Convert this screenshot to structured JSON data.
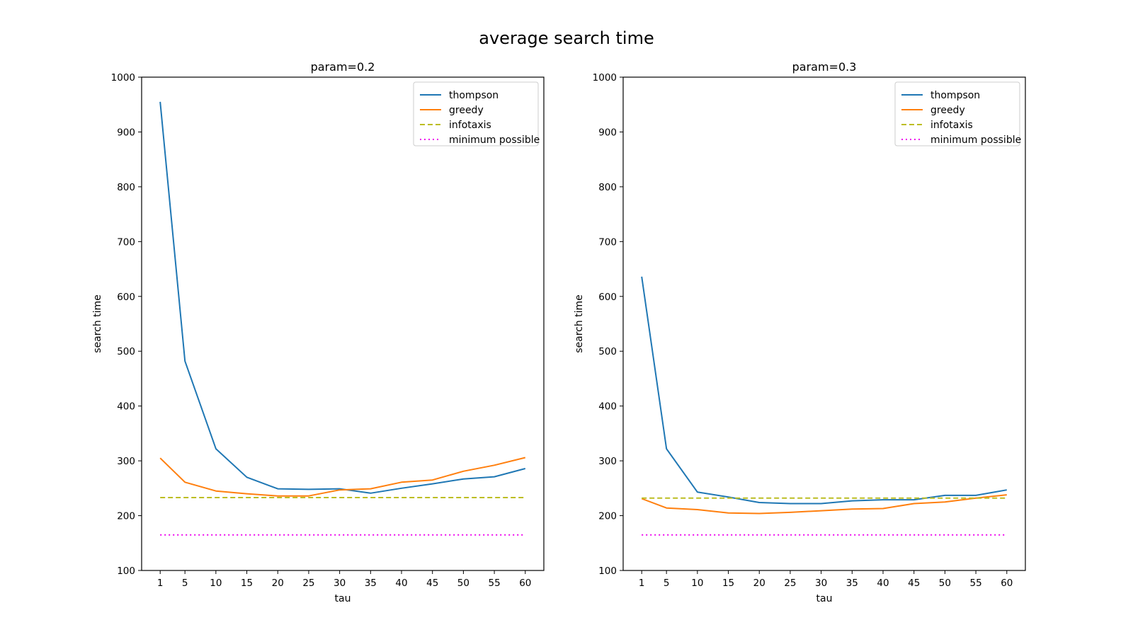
{
  "figure": {
    "title": "average search time"
  },
  "chart_data": [
    {
      "type": "line",
      "title": "param=0.2",
      "xlabel": "tau",
      "ylabel": "search time",
      "ylim": [
        100,
        1000
      ],
      "yticks": [
        100,
        200,
        300,
        400,
        500,
        600,
        700,
        800,
        900,
        1000
      ],
      "xticks": [
        1,
        5,
        10,
        15,
        20,
        25,
        30,
        35,
        40,
        45,
        50,
        55,
        60
      ],
      "x": [
        1,
        5,
        10,
        15,
        20,
        25,
        30,
        35,
        40,
        45,
        50,
        55,
        60
      ],
      "grid": false,
      "legend_position": "upper right",
      "series": [
        {
          "name": "thompson",
          "style": "solid",
          "color": "#1f77b4",
          "values": [
            955,
            482,
            322,
            270,
            249,
            248,
            249,
            241,
            250,
            258,
            267,
            271,
            286
          ]
        },
        {
          "name": "greedy",
          "style": "solid",
          "color": "#ff7f0e",
          "values": [
            305,
            261,
            245,
            240,
            236,
            236,
            247,
            249,
            261,
            265,
            281,
            292,
            306
          ]
        },
        {
          "name": "infotaxis",
          "style": "dashed",
          "color": "#bcbd22",
          "values": [
            233,
            233,
            233,
            233,
            233,
            233,
            233,
            233,
            233,
            233,
            233,
            233,
            233
          ]
        },
        {
          "name": "minimum possible",
          "style": "dotted",
          "color": "#ee00ee",
          "values": [
            165,
            165,
            165,
            165,
            165,
            165,
            165,
            165,
            165,
            165,
            165,
            165,
            165
          ]
        }
      ]
    },
    {
      "type": "line",
      "title": "param=0.3",
      "xlabel": "tau",
      "ylabel": "search time",
      "ylim": [
        100,
        1000
      ],
      "yticks": [
        100,
        200,
        300,
        400,
        500,
        600,
        700,
        800,
        900,
        1000
      ],
      "xticks": [
        1,
        5,
        10,
        15,
        20,
        25,
        30,
        35,
        40,
        45,
        50,
        55,
        60
      ],
      "x": [
        1,
        5,
        10,
        15,
        20,
        25,
        30,
        35,
        40,
        45,
        50,
        55,
        60
      ],
      "grid": false,
      "legend_position": "upper right",
      "series": [
        {
          "name": "thompson",
          "style": "solid",
          "color": "#1f77b4",
          "values": [
            636,
            322,
            243,
            234,
            224,
            222,
            222,
            227,
            229,
            229,
            237,
            237,
            247
          ]
        },
        {
          "name": "greedy",
          "style": "solid",
          "color": "#ff7f0e",
          "values": [
            231,
            214,
            211,
            205,
            204,
            206,
            209,
            212,
            213,
            222,
            225,
            232,
            238
          ]
        },
        {
          "name": "infotaxis",
          "style": "dashed",
          "color": "#bcbd22",
          "values": [
            232,
            232,
            232,
            232,
            232,
            232,
            232,
            232,
            232,
            232,
            232,
            232,
            232
          ]
        },
        {
          "name": "minimum possible",
          "style": "dotted",
          "color": "#ee00ee",
          "values": [
            165,
            165,
            165,
            165,
            165,
            165,
            165,
            165,
            165,
            165,
            165,
            165,
            165
          ]
        }
      ]
    }
  ]
}
